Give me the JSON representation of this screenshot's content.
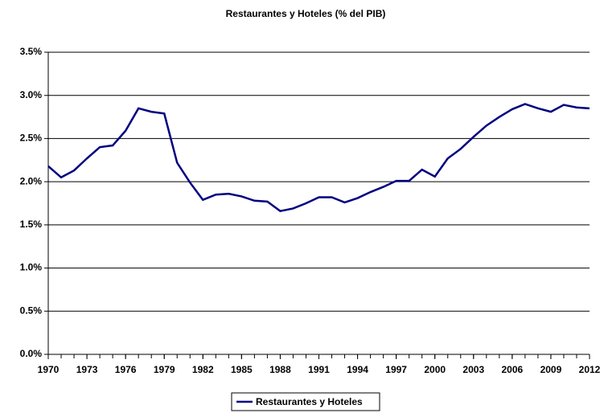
{
  "chart_data": {
    "type": "line",
    "title": "Restaurantes y Hoteles (% del PIB)",
    "x": [
      1970,
      1971,
      1972,
      1973,
      1974,
      1975,
      1976,
      1977,
      1978,
      1979,
      1980,
      1981,
      1982,
      1983,
      1984,
      1985,
      1986,
      1987,
      1988,
      1989,
      1990,
      1991,
      1992,
      1993,
      1994,
      1995,
      1996,
      1997,
      1998,
      1999,
      2000,
      2001,
      2002,
      2003,
      2004,
      2005,
      2006,
      2007,
      2008,
      2009,
      2010,
      2011,
      2012
    ],
    "series": [
      {
        "name": "Restaurantes y Hoteles",
        "color": "#000080",
        "values": [
          2.18,
          2.05,
          2.13,
          2.27,
          2.4,
          2.42,
          2.59,
          2.85,
          2.81,
          2.79,
          2.22,
          1.99,
          1.79,
          1.85,
          1.86,
          1.83,
          1.78,
          1.77,
          1.66,
          1.69,
          1.75,
          1.82,
          1.82,
          1.76,
          1.81,
          1.88,
          1.94,
          2.01,
          2.01,
          2.14,
          2.06,
          2.27,
          2.38,
          2.52,
          2.65,
          2.75,
          2.84,
          2.9,
          2.85,
          2.81,
          2.89,
          2.86,
          2.85
        ]
      }
    ],
    "xlim": [
      1970,
      2012
    ],
    "xticks": [
      1970,
      1973,
      1976,
      1979,
      1982,
      1985,
      1988,
      1991,
      1994,
      1997,
      2000,
      2003,
      2006,
      2009,
      2012
    ],
    "ylim": [
      0,
      3.5
    ],
    "yticks": [
      {
        "value": 0,
        "label": "0.0%"
      },
      {
        "value": 0.5,
        "label": "0.5%"
      },
      {
        "value": 1,
        "label": "1.0%"
      },
      {
        "value": 1.5,
        "label": "1.5%"
      },
      {
        "value": 2,
        "label": "2.0%"
      },
      {
        "value": 2.5,
        "label": "2.5%"
      },
      {
        "value": 3,
        "label": "3.0%"
      },
      {
        "value": 3.5,
        "label": "3.5%"
      }
    ],
    "grid": true,
    "legend": "bottom"
  }
}
